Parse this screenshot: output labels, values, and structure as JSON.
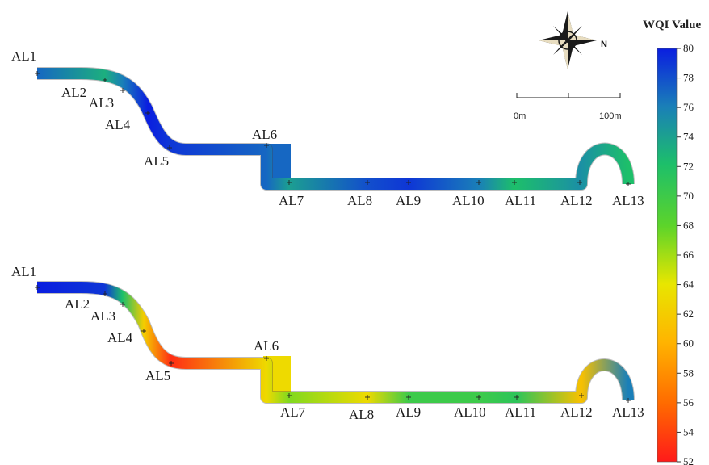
{
  "colors": {
    "c52": "#ff1a1a",
    "c56": "#ff6a00",
    "c60": "#ffb400",
    "c64": "#e8e600",
    "c68": "#5dd42a",
    "c72": "#1dbf6a",
    "c76": "#1a7fb8",
    "c80": "#0a1ee0"
  },
  "legend": {
    "title": "WQI Value",
    "min": 52,
    "max": 80,
    "ticks": [
      "80",
      "78",
      "76",
      "74",
      "72",
      "70",
      "68",
      "66",
      "64",
      "62",
      "60",
      "58",
      "56",
      "54",
      "52"
    ]
  },
  "scale_bar": {
    "start_label": "0m",
    "end_label": "100m"
  },
  "north_label": "N",
  "maps": [
    {
      "sites": [
        {
          "id": "AL1",
          "label": "AL1",
          "wqi": 77
        },
        {
          "id": "AL2",
          "label": "AL2",
          "wqi": 73
        },
        {
          "id": "AL3",
          "label": "AL3",
          "wqi": 76
        },
        {
          "id": "AL4",
          "label": "AL4",
          "wqi": 80
        },
        {
          "id": "AL5",
          "label": "AL5",
          "wqi": 79
        },
        {
          "id": "AL6",
          "label": "AL6",
          "wqi": 77
        },
        {
          "id": "AL7",
          "label": "AL7",
          "wqi": 74
        },
        {
          "id": "AL8",
          "label": "AL8",
          "wqi": 78
        },
        {
          "id": "AL9",
          "label": "AL9",
          "wqi": 79
        },
        {
          "id": "AL10",
          "label": "AL10",
          "wqi": 76
        },
        {
          "id": "AL11",
          "label": "AL11",
          "wqi": 72
        },
        {
          "id": "AL12",
          "label": "AL12",
          "wqi": 75
        },
        {
          "id": "AL13",
          "label": "AL13",
          "wqi": 72
        }
      ]
    },
    {
      "sites": [
        {
          "id": "AL1",
          "label": "AL1",
          "wqi": 80
        },
        {
          "id": "AL2",
          "label": "AL2",
          "wqi": 79
        },
        {
          "id": "AL3",
          "label": "AL3",
          "wqi": 72
        },
        {
          "id": "AL4",
          "label": "AL4",
          "wqi": 62
        },
        {
          "id": "AL5",
          "label": "AL5",
          "wqi": 53
        },
        {
          "id": "AL6",
          "label": "AL6",
          "wqi": 63
        },
        {
          "id": "AL7",
          "label": "AL7",
          "wqi": 67
        },
        {
          "id": "AL8",
          "label": "AL8",
          "wqi": 63
        },
        {
          "id": "AL9",
          "label": "AL9",
          "wqi": 70
        },
        {
          "id": "AL10",
          "label": "AL10",
          "wqi": 70
        },
        {
          "id": "AL11",
          "label": "AL11",
          "wqi": 71
        },
        {
          "id": "AL12",
          "label": "AL12",
          "wqi": 61
        },
        {
          "id": "AL13",
          "label": "AL13",
          "wqi": 76
        }
      ]
    }
  ]
}
